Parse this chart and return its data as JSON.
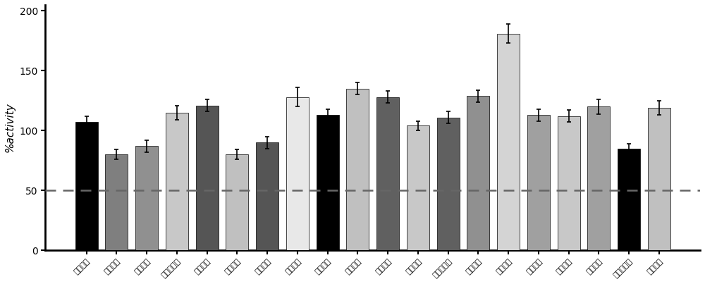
{
  "categories": [
    "安罗替尼",
    "阿卡替尼",
    "来那度胺",
    "艾代拉里斯",
    "巴瑞替尼",
    "恩杂鲁胺",
    "尼达尼布",
    "美泊地布",
    "阿比朵尔",
    "恩曲替尼",
    "瑞德西韦",
    "克拉夫定",
    "培西达塞尼",
    "达芦那韦",
    "法匹拉韦",
    "塞利尼索",
    "泽布替尼",
    "艾维替尼",
    "奥扎尼美德",
    "吉非替尼"
  ],
  "values": [
    107,
    80,
    87,
    115,
    121,
    80,
    90,
    128,
    113,
    135,
    128,
    104,
    111,
    129,
    181,
    113,
    112,
    120,
    85,
    119
  ],
  "errors": [
    5,
    4,
    5,
    6,
    5,
    4,
    5,
    8,
    5,
    5,
    5,
    4,
    5,
    5,
    8,
    5,
    5,
    6,
    4,
    6
  ],
  "bar_colors": [
    "#000000",
    "#7f7f7f",
    "#909090",
    "#c8c8c8",
    "#555555",
    "#c0c0c0",
    "#555555",
    "#e8e8e8",
    "#000000",
    "#c0c0c0",
    "#606060",
    "#c8c8c8",
    "#606060",
    "#909090",
    "#d4d4d4",
    "#a0a0a0",
    "#c8c8c8",
    "#a0a0a0",
    "#000000",
    "#c0c0c0"
  ],
  "dashed_line_y": 50,
  "ylabel": "%activity",
  "ylim": [
    0,
    205
  ],
  "yticks": [
    0,
    50,
    100,
    150,
    200
  ],
  "dashed_color": "#666666",
  "background_color": "#ffffff",
  "bar_width": 0.75,
  "figsize": [
    10.0,
    4.03
  ],
  "dpi": 100
}
